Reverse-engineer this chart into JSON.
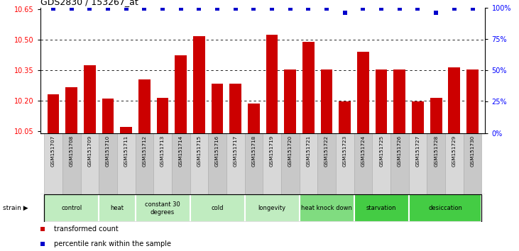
{
  "title": "GDS2830 / 153267_at",
  "samples": [
    "GSM151707",
    "GSM151708",
    "GSM151709",
    "GSM151710",
    "GSM151711",
    "GSM151712",
    "GSM151713",
    "GSM151714",
    "GSM151715",
    "GSM151716",
    "GSM151717",
    "GSM151718",
    "GSM151719",
    "GSM151720",
    "GSM151721",
    "GSM151722",
    "GSM151723",
    "GSM151724",
    "GSM151725",
    "GSM151726",
    "GSM151727",
    "GSM151728",
    "GSM151729",
    "GSM151730"
  ],
  "bar_values": [
    10.23,
    10.265,
    10.375,
    10.21,
    10.07,
    10.305,
    10.215,
    10.425,
    10.52,
    10.285,
    10.285,
    10.185,
    10.525,
    10.355,
    10.49,
    10.355,
    10.195,
    10.44,
    10.355,
    10.355,
    10.195,
    10.215,
    10.365,
    10.355
  ],
  "percentile_values": [
    99,
    99,
    99,
    99,
    99,
    99,
    99,
    99,
    99,
    99,
    99,
    99,
    99,
    99,
    99,
    99,
    96,
    99,
    99,
    99,
    99,
    96,
    99,
    99
  ],
  "groups": [
    {
      "label": "control",
      "start": 0,
      "end": 3,
      "color": "#c0ecc0"
    },
    {
      "label": "heat",
      "start": 3,
      "end": 5,
      "color": "#c0ecc0"
    },
    {
      "label": "constant 30\ndegrees",
      "start": 5,
      "end": 8,
      "color": "#c0ecc0"
    },
    {
      "label": "cold",
      "start": 8,
      "end": 11,
      "color": "#c0ecc0"
    },
    {
      "label": "longevity",
      "start": 11,
      "end": 14,
      "color": "#c0ecc0"
    },
    {
      "label": "heat knock down",
      "start": 14,
      "end": 17,
      "color": "#80dc80"
    },
    {
      "label": "starvation",
      "start": 17,
      "end": 20,
      "color": "#44cc44"
    },
    {
      "label": "desiccation",
      "start": 20,
      "end": 24,
      "color": "#44cc44"
    }
  ],
  "ylim_left": [
    10.04,
    10.66
  ],
  "ylim_right": [
    0,
    100
  ],
  "yticks_left": [
    10.05,
    10.2,
    10.35,
    10.5,
    10.65
  ],
  "yticks_right": [
    0,
    25,
    50,
    75,
    100
  ],
  "bar_color": "#cc0000",
  "dot_color": "#0000cc",
  "grid_lines": [
    10.2,
    10.35,
    10.5
  ],
  "legend_items": [
    {
      "label": "transformed count",
      "color": "#cc0000"
    },
    {
      "label": "percentile rank within the sample",
      "color": "#0000cc"
    }
  ]
}
